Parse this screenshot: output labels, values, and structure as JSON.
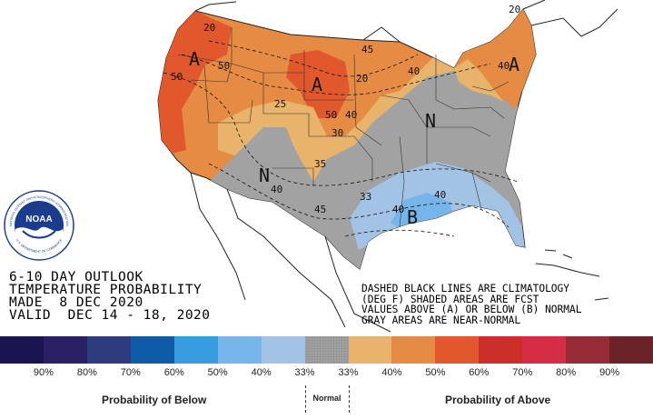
{
  "title_block": {
    "line1": "6-10 DAY OUTLOOK",
    "line2": "TEMPERATURE PROBABILITY",
    "line3": "MADE  8 DEC 2020",
    "line4": "VALID  DEC 14 - 18, 2020"
  },
  "legend_notes": {
    "line1": "DASHED BLACK LINES ARE CLIMATOLOGY",
    "line2": "(DEG F) SHADED AREAS ARE FCST",
    "line3": "VALUES ABOVE (A) OR BELOW (B) NORMAL",
    "line4": "GRAY AREAS ARE NEAR-NORMAL"
  },
  "map_labels": {
    "above_west": "A",
    "above_plains": "A",
    "above_northeast": "A",
    "normal_southwest": "N",
    "normal_east": "N",
    "below_gulf": "B"
  },
  "climatology_values": [
    "50",
    "50",
    "45",
    "40",
    "25",
    "50",
    "40",
    "30",
    "35",
    "40",
    "45",
    "33",
    "40",
    "40",
    "40",
    "20",
    "20",
    "20"
  ],
  "logo": {
    "text": "NOAA",
    "ring_top": "NATIONAL OCEANIC AND ATMOSPHERIC ADMINISTRATION",
    "ring_bottom": "U.S. DEPARTMENT OF COMMERCE"
  },
  "scale": {
    "colors": [
      "#1a1550",
      "#2b1f63",
      "#2c3c7c",
      "#0e5ba8",
      "#3a9ce0",
      "#75b5ea",
      "#a3c3e4",
      "#a2a2a2",
      "#e8b36a",
      "#e68b44",
      "#e0582c",
      "#cc2e29",
      "#d52d44",
      "#972b36",
      "#6b2228"
    ],
    "labels": [
      "90%",
      "80%",
      "70%",
      "60%",
      "50%",
      "40%",
      "33%",
      "33%",
      "40%",
      "50%",
      "60%",
      "70%",
      "80%",
      "90%"
    ]
  },
  "categories": {
    "below": "Probability of Below",
    "normal": "Normal",
    "above": "Probability of Above"
  }
}
